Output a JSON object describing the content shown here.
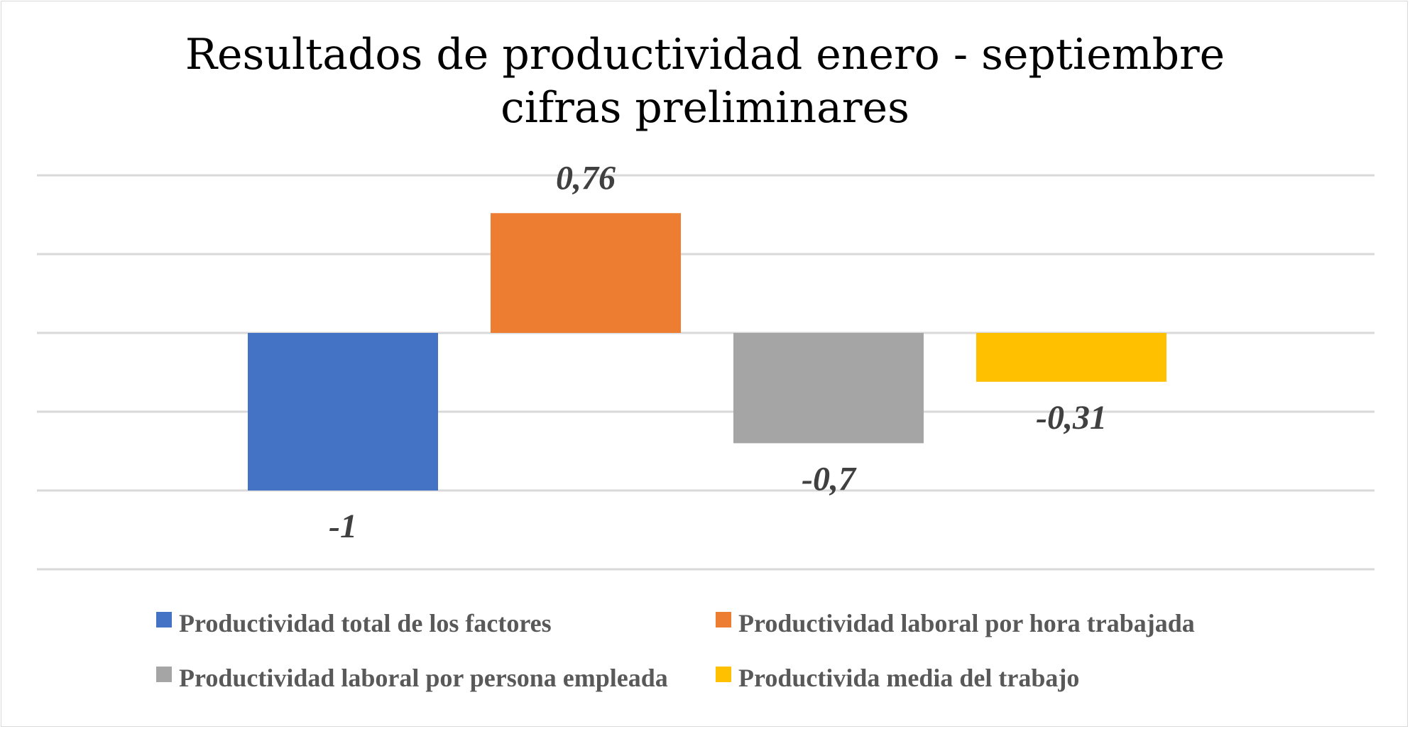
{
  "chart_data": {
    "type": "bar",
    "title": "Resultados de productividad enero - septiembre",
    "subtitle": "cifras preliminares",
    "xlabel": "",
    "ylabel": "",
    "ylim": [
      -1.5,
      1.0
    ],
    "grid": true,
    "legend_position": "bottom",
    "series": [
      {
        "name": "Productividad total de los factores",
        "values": [
          -1
        ],
        "label": "-1",
        "color": "#4472C4"
      },
      {
        "name": "Productividad laboral por hora trabajada",
        "values": [
          0.76
        ],
        "label": "0,76",
        "color": "#ED7D31"
      },
      {
        "name": "Productividad laboral por persona empleada",
        "values": [
          -0.7
        ],
        "label": "-0,7",
        "color": "#A5A5A5"
      },
      {
        "name": "Productivida media del trabajo",
        "values": [
          -0.31
        ],
        "label": "-0,31",
        "color": "#FFC000"
      }
    ]
  }
}
